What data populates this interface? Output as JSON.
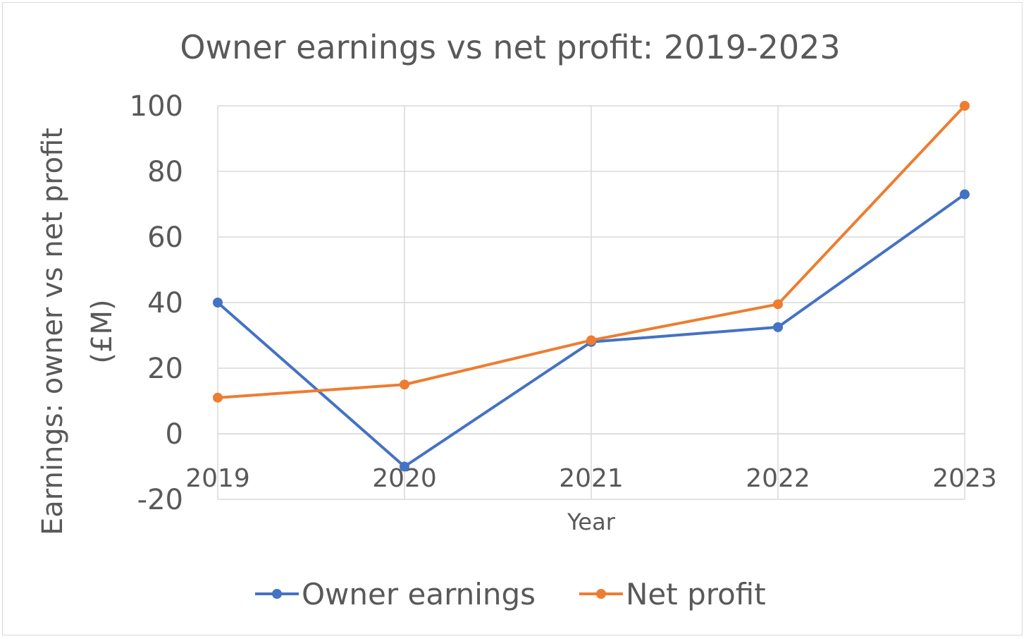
{
  "chart_data": {
    "type": "line",
    "title": "Owner earnings vs net profit: 2019-2023",
    "xlabel": "Year",
    "ylabel_line1": "Earnings: owner vs net profit",
    "ylabel_line2": "(£M)",
    "categories": [
      "2019",
      "2020",
      "2021",
      "2022",
      "2023"
    ],
    "ylim": [
      -20,
      100
    ],
    "yticks": [
      100,
      80,
      60,
      40,
      20,
      0,
      -20
    ],
    "ytick_labels": [
      "100",
      "80",
      "60",
      "40",
      "20",
      "0",
      "-20"
    ],
    "grid": true,
    "legend_position": "bottom",
    "series": [
      {
        "name": "Owner earnings",
        "color": "#4472c4",
        "values": [
          40,
          -10,
          28,
          32.5,
          73
        ]
      },
      {
        "name": "Net profit",
        "color": "#ed7d31",
        "values": [
          11,
          15,
          28.5,
          39.5,
          100
        ]
      }
    ]
  }
}
